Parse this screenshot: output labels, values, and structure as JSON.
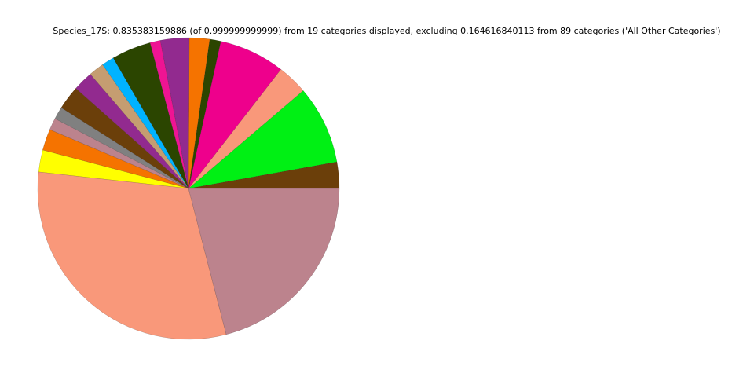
{
  "chart_data": {
    "type": "pie",
    "title": "Species_17S: 0.835383159886 (of 0.999999999999) from 19 categories displayed, excluding 0.164616840113 from 89 categories ('All Other Categories')",
    "start_angle_deg": 0,
    "direction": "counterclockwise",
    "values": [
      0.0283,
      0.0842,
      0.0325,
      0.0706,
      0.0119,
      0.0217,
      0.0308,
      0.0111,
      0.0422,
      0.0133,
      0.0164,
      0.0214,
      0.0256,
      0.0133,
      0.0128,
      0.0228,
      0.0236,
      0.3078,
      0.2097
    ],
    "colors": [
      "#6b3f0a",
      "#00f014",
      "#f9987a",
      "#ee008c",
      "#2b4500",
      "#f57300",
      "#922a8f",
      "#ee1493",
      "#2b4500",
      "#00b3ff",
      "#c59d71",
      "#922a8f",
      "#6b3f0a",
      "#808080",
      "#bc838d",
      "#f57300",
      "#ffff00",
      "#f9987a",
      "#bc838d"
    ]
  }
}
